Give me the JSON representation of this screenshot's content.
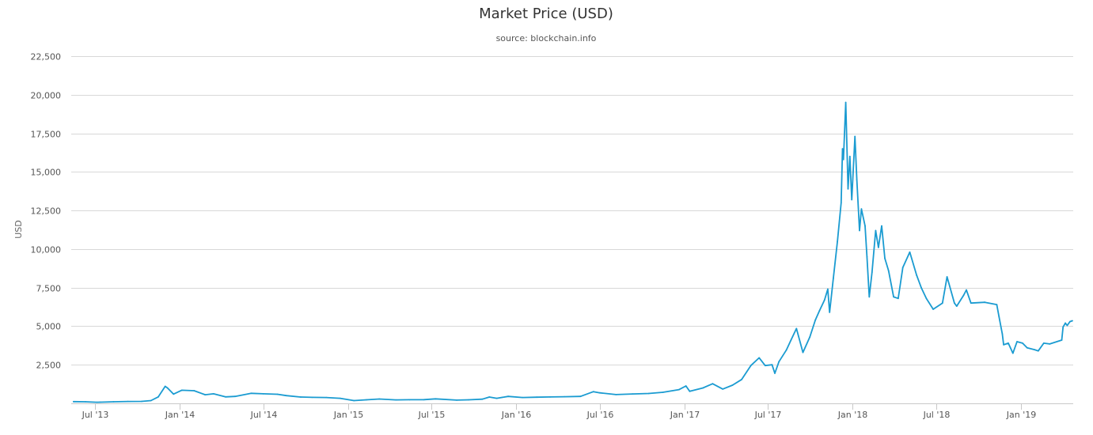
{
  "chart_data": {
    "type": "line",
    "title": "Market Price (USD)",
    "subtitle": "source: blockchain.info",
    "xlabel": "",
    "ylabel": "USD",
    "grid": true,
    "legend": "none",
    "line_color": "#1a9bd1",
    "xlim": [
      "2013-05-10",
      "2019-04-25"
    ],
    "ylim": [
      0,
      22500
    ],
    "yticks": [
      2500,
      5000,
      7500,
      10000,
      12500,
      15000,
      17500,
      20000,
      22500
    ],
    "ytick_labels": [
      "2,500",
      "5,000",
      "7,500",
      "10,000",
      "12,500",
      "15,000",
      "17,500",
      "20,000",
      "22,500"
    ],
    "xticks": [
      "2013-07-01",
      "2014-01-01",
      "2014-07-01",
      "2015-01-01",
      "2015-07-01",
      "2016-01-01",
      "2016-07-01",
      "2017-01-01",
      "2017-07-01",
      "2018-01-01",
      "2018-07-01",
      "2019-01-01"
    ],
    "xtick_labels": [
      "Jul '13",
      "Jan '14",
      "Jul '14",
      "Jan '15",
      "Jul '15",
      "Jan '16",
      "Jul '16",
      "Jan '17",
      "Jul '17",
      "Jan '18",
      "Jul '18",
      "Jan '19"
    ],
    "series": [
      {
        "name": "",
        "points": [
          [
            "2013-05-15",
            115
          ],
          [
            "2013-06-10",
            105
          ],
          [
            "2013-07-05",
            70
          ],
          [
            "2013-08-10",
            100
          ],
          [
            "2013-09-10",
            125
          ],
          [
            "2013-10-10",
            130
          ],
          [
            "2013-10-30",
            180
          ],
          [
            "2013-11-15",
            420
          ],
          [
            "2013-11-30",
            1100
          ],
          [
            "2013-12-05",
            1000
          ],
          [
            "2013-12-18",
            600
          ],
          [
            "2014-01-05",
            850
          ],
          [
            "2014-02-01",
            820
          ],
          [
            "2014-02-25",
            560
          ],
          [
            "2014-03-15",
            620
          ],
          [
            "2014-04-10",
            420
          ],
          [
            "2014-05-01",
            450
          ],
          [
            "2014-06-05",
            650
          ],
          [
            "2014-07-01",
            620
          ],
          [
            "2014-08-01",
            590
          ],
          [
            "2014-08-20",
            500
          ],
          [
            "2014-09-20",
            410
          ],
          [
            "2014-10-15",
            390
          ],
          [
            "2014-11-15",
            380
          ],
          [
            "2014-12-15",
            330
          ],
          [
            "2015-01-14",
            180
          ],
          [
            "2015-02-10",
            230
          ],
          [
            "2015-03-10",
            280
          ],
          [
            "2015-04-15",
            225
          ],
          [
            "2015-05-15",
            238
          ],
          [
            "2015-06-15",
            240
          ],
          [
            "2015-07-10",
            290
          ],
          [
            "2015-08-25",
            210
          ],
          [
            "2015-09-20",
            232
          ],
          [
            "2015-10-20",
            270
          ],
          [
            "2015-11-04",
            410
          ],
          [
            "2015-11-20",
            330
          ],
          [
            "2015-12-15",
            450
          ],
          [
            "2016-01-15",
            380
          ],
          [
            "2016-02-15",
            400
          ],
          [
            "2016-03-15",
            415
          ],
          [
            "2016-04-15",
            430
          ],
          [
            "2016-05-20",
            450
          ],
          [
            "2016-06-17",
            760
          ],
          [
            "2016-07-01",
            680
          ],
          [
            "2016-08-05",
            570
          ],
          [
            "2016-09-10",
            610
          ],
          [
            "2016-10-15",
            640
          ],
          [
            "2016-11-15",
            720
          ],
          [
            "2016-12-20",
            890
          ],
          [
            "2017-01-04",
            1130
          ],
          [
            "2017-01-12",
            780
          ],
          [
            "2017-02-10",
            1000
          ],
          [
            "2017-03-03",
            1270
          ],
          [
            "2017-03-25",
            930
          ],
          [
            "2017-04-15",
            1180
          ],
          [
            "2017-05-05",
            1550
          ],
          [
            "2017-05-25",
            2450
          ],
          [
            "2017-06-12",
            2950
          ],
          [
            "2017-06-25",
            2450
          ],
          [
            "2017-07-10",
            2500
          ],
          [
            "2017-07-16",
            1950
          ],
          [
            "2017-07-25",
            2700
          ],
          [
            "2017-08-10",
            3450
          ],
          [
            "2017-08-20",
            4100
          ],
          [
            "2017-09-01",
            4850
          ],
          [
            "2017-09-15",
            3300
          ],
          [
            "2017-09-30",
            4300
          ],
          [
            "2017-10-12",
            5400
          ],
          [
            "2017-10-21",
            6000
          ],
          [
            "2017-11-01",
            6700
          ],
          [
            "2017-11-08",
            7400
          ],
          [
            "2017-11-12",
            5900
          ],
          [
            "2017-11-20",
            8100
          ],
          [
            "2017-11-29",
            10500
          ],
          [
            "2017-12-07",
            13000
          ],
          [
            "2017-12-10",
            16500
          ],
          [
            "2017-12-12",
            15800
          ],
          [
            "2017-12-17",
            19500
          ],
          [
            "2017-12-22",
            13900
          ],
          [
            "2017-12-26",
            16000
          ],
          [
            "2017-12-30",
            13200
          ],
          [
            "2018-01-06",
            17300
          ],
          [
            "2018-01-10",
            14500
          ],
          [
            "2018-01-16",
            11200
          ],
          [
            "2018-01-20",
            12600
          ],
          [
            "2018-01-28",
            11500
          ],
          [
            "2018-02-01",
            9500
          ],
          [
            "2018-02-06",
            6900
          ],
          [
            "2018-02-12",
            8500
          ],
          [
            "2018-02-20",
            11200
          ],
          [
            "2018-02-26",
            10100
          ],
          [
            "2018-03-05",
            11500
          ],
          [
            "2018-03-12",
            9400
          ],
          [
            "2018-03-20",
            8600
          ],
          [
            "2018-03-31",
            6900
          ],
          [
            "2018-04-10",
            6800
          ],
          [
            "2018-04-20",
            8800
          ],
          [
            "2018-05-05",
            9800
          ],
          [
            "2018-05-20",
            8300
          ],
          [
            "2018-05-30",
            7500
          ],
          [
            "2018-06-10",
            6800
          ],
          [
            "2018-06-25",
            6100
          ],
          [
            "2018-07-15",
            6500
          ],
          [
            "2018-07-25",
            8200
          ],
          [
            "2018-08-10",
            6500
          ],
          [
            "2018-08-15",
            6300
          ],
          [
            "2018-08-30",
            7000
          ],
          [
            "2018-09-05",
            7350
          ],
          [
            "2018-09-15",
            6500
          ],
          [
            "2018-10-15",
            6550
          ],
          [
            "2018-11-10",
            6400
          ],
          [
            "2018-11-15",
            5600
          ],
          [
            "2018-11-22",
            4500
          ],
          [
            "2018-11-25",
            3800
          ],
          [
            "2018-12-05",
            3900
          ],
          [
            "2018-12-15",
            3250
          ],
          [
            "2018-12-24",
            4000
          ],
          [
            "2019-01-05",
            3900
          ],
          [
            "2019-01-15",
            3600
          ],
          [
            "2019-01-31",
            3480
          ],
          [
            "2019-02-08",
            3400
          ],
          [
            "2019-02-20",
            3900
          ],
          [
            "2019-03-05",
            3850
          ],
          [
            "2019-03-31",
            4100
          ],
          [
            "2019-04-03",
            4950
          ],
          [
            "2019-04-08",
            5200
          ],
          [
            "2019-04-12",
            5050
          ],
          [
            "2019-04-18",
            5300
          ],
          [
            "2019-04-23",
            5350
          ]
        ]
      }
    ]
  }
}
